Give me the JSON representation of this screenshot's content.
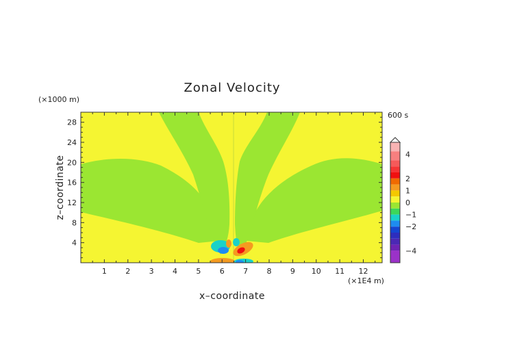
{
  "chart_data": {
    "type": "heatmap",
    "title": "Zonal Velocity",
    "xlabel": "x–coordinate",
    "ylabel": "z–coordinate",
    "x_unit": "(×1E4 m)",
    "y_unit": "(×1000 m)",
    "time_label": "600 s",
    "xlim": [
      0,
      12.8
    ],
    "ylim": [
      0,
      30
    ],
    "x_ticks": [
      "1",
      "2",
      "3",
      "4",
      "5",
      "6",
      "7",
      "8",
      "9",
      "10",
      "11",
      "12"
    ],
    "y_ticks": [
      "4",
      "8",
      "12",
      "16",
      "20",
      "24",
      "28"
    ],
    "colorbar": {
      "ticks": [
        "4",
        "2",
        "1",
        "0",
        "−1",
        "−2",
        "−4"
      ],
      "tick_values": [
        4,
        2,
        1,
        0,
        -1,
        -2,
        -4
      ],
      "levels": [
        {
          "from": 5,
          "to": 4.25,
          "color": "#f8b3b3"
        },
        {
          "from": 4.25,
          "to": 3.5,
          "color": "#f77f7f"
        },
        {
          "from": 3.5,
          "to": 3.0,
          "color": "#f55a5a"
        },
        {
          "from": 3.0,
          "to": 2.5,
          "color": "#f53535"
        },
        {
          "from": 2.5,
          "to": 2.0,
          "color": "#f01010"
        },
        {
          "from": 2.0,
          "to": 1.5,
          "color": "#f06a00"
        },
        {
          "from": 1.5,
          "to": 1.0,
          "color": "#f59a20"
        },
        {
          "from": 1.0,
          "to": 0.5,
          "color": "#f4c800"
        },
        {
          "from": 0.5,
          "to": 0.0,
          "color": "#f5f532"
        },
        {
          "from": 0.0,
          "to": -0.5,
          "color": "#9be632"
        },
        {
          "from": -0.5,
          "to": -1.0,
          "color": "#3cd75a"
        },
        {
          "from": -1.0,
          "to": -1.5,
          "color": "#19d2c8"
        },
        {
          "from": -1.5,
          "to": -2.0,
          "color": "#1e8cf0"
        },
        {
          "from": -2.0,
          "to": -2.5,
          "color": "#1446d2"
        },
        {
          "from": -2.5,
          "to": -3.0,
          "color": "#2d2dbe"
        },
        {
          "from": -3.0,
          "to": -3.5,
          "color": "#4b28b4"
        },
        {
          "from": -3.5,
          "to": -4.0,
          "color": "#6e23b4"
        },
        {
          "from": -4.0,
          "to": -5.0,
          "color": "#9b32c8"
        }
      ]
    },
    "field_colors": {
      "positive_weak": "#f5f532",
      "negative_weak": "#9be632",
      "orange": "#f59a20",
      "red": "#f01010",
      "cyan": "#19d2c8",
      "blue": "#1e8cf0"
    }
  }
}
